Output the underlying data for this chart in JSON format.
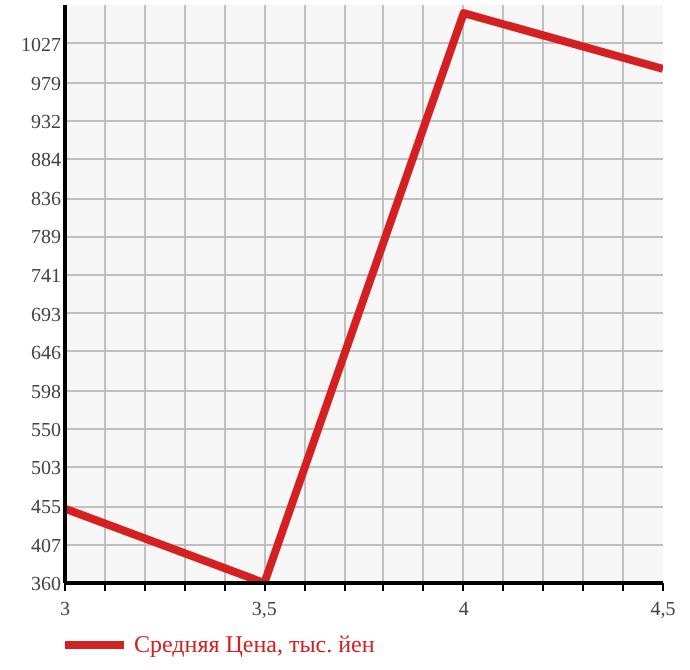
{
  "chart_data": {
    "type": "line",
    "x": [
      3,
      3.5,
      4,
      4.5
    ],
    "series": [
      {
        "name": "Средняя Цена, тыс. йен",
        "color": "#d42020",
        "values": [
          452,
          360,
          1065,
          996
        ]
      }
    ],
    "xlim": [
      3,
      4.5
    ],
    "xticks": [
      3,
      {
        "value": 3.1,
        "label": null
      },
      {
        "value": 3.2,
        "label": null
      },
      {
        "value": 3.3,
        "label": null
      },
      {
        "value": 3.4,
        "label": null
      },
      {
        "value": 3.5,
        "label": "3,5"
      },
      {
        "value": 3.6,
        "label": null
      },
      {
        "value": 3.7,
        "label": null
      },
      {
        "value": 3.8,
        "label": null
      },
      {
        "value": 3.9,
        "label": null
      },
      4,
      {
        "value": 4.1,
        "label": null
      },
      {
        "value": 4.2,
        "label": null
      },
      {
        "value": 4.3,
        "label": null
      },
      {
        "value": 4.4,
        "label": null
      },
      {
        "value": 4.5,
        "label": "4,5"
      }
    ],
    "ylim": [
      360,
      1075
    ],
    "yticks": [
      360,
      407,
      455,
      503,
      550,
      598,
      646,
      693,
      741,
      789,
      836,
      884,
      932,
      979,
      1027
    ],
    "grid": true,
    "legend": "bottom left",
    "line_style": "solid",
    "marker": "none"
  }
}
